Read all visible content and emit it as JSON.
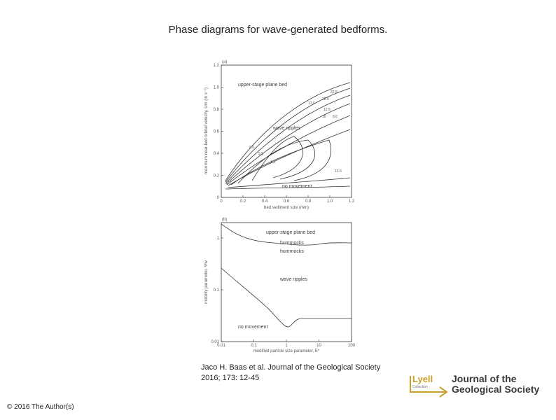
{
  "title": "Phase diagrams for wave-generated bedforms.",
  "figure": {
    "panel_a": {
      "label": "(a)",
      "ylabel": "maximum near-bed orbital velocity, Um (m s⁻¹)",
      "xlabel": "bed sediment size (mm)",
      "xticks": [
        "0",
        "0.2",
        "0.4",
        "0.6",
        "0.8",
        "1.0",
        "1.2"
      ],
      "yticks": [
        "0",
        "0.2",
        "0.4",
        "0.6",
        "0.8",
        "1.0",
        "1.2"
      ],
      "regions": [
        "upper-stage plane bed",
        "wave ripples",
        "no movement"
      ],
      "contour_labels": [
        "32.5",
        "22.5",
        "17.5",
        "12.5",
        "10",
        "8.6",
        "6.5",
        "5.5",
        "4.1",
        "13.6"
      ]
    },
    "panel_b": {
      "label": "(b)",
      "ylabel": "mobility parameter, Ψw",
      "xlabel": "modified particle size parameter, E*",
      "xticks": [
        "0.01",
        "0.1",
        "1",
        "10",
        "100"
      ],
      "yticks": [
        "0.01",
        "0.1",
        "1"
      ],
      "regions": [
        "upper-stage plane bed",
        "hummocks",
        "hummocks",
        "wave ripples",
        "no movement"
      ]
    }
  },
  "citation": [
    "Jaco H. Baas et al. Journal of the Geological Society",
    "2016; 173: 12-45"
  ],
  "logo": {
    "left": "Lyell",
    "sub": "Collection",
    "right": [
      "Journal of the",
      "Geological Society"
    ]
  },
  "copyright": "© 2016 The Author(s)"
}
